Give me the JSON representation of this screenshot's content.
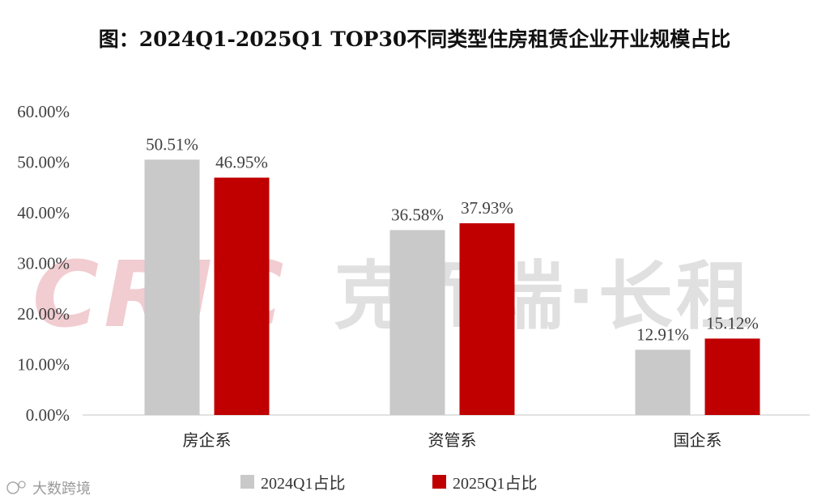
{
  "watermark": {
    "latin": "CRIC",
    "cjk": "克而瑞·长租",
    "source": "大数跨境"
  },
  "colors": {
    "series_2024": "#c9c9c9",
    "series_2025": "#c00000",
    "axis": "#d9d9d9"
  },
  "chart_data": {
    "type": "bar",
    "title": "图：2024Q1-2025Q1 TOP30不同类型住房租赁企业开业规模占比",
    "xlabel": "",
    "ylabel": "",
    "categories": [
      "房企系",
      "资管系",
      "国企系"
    ],
    "series": [
      {
        "name": "2024Q1占比",
        "values": [
          50.51,
          36.58,
          12.91
        ],
        "labels": [
          "50.51%",
          "36.58%",
          "12.91%"
        ]
      },
      {
        "name": "2025Q1占比",
        "values": [
          46.95,
          37.93,
          15.12
        ],
        "labels": [
          "46.95%",
          "37.93%",
          "15.12%"
        ]
      }
    ],
    "ylim": [
      0,
      60
    ],
    "yticks": [
      "0.00%",
      "10.00%",
      "20.00%",
      "30.00%",
      "40.00%",
      "50.00%",
      "60.00%"
    ],
    "grid": false,
    "legend_position": "bottom"
  }
}
